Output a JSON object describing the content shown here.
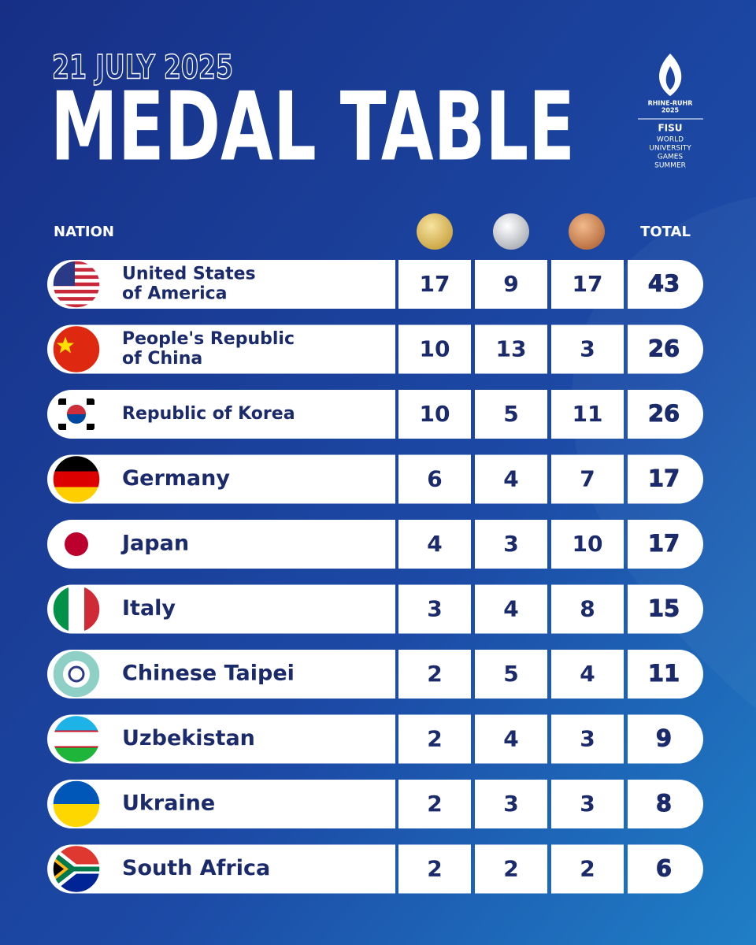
{
  "header": {
    "date": "21 JULY 2025",
    "title": "MEDAL TABLE"
  },
  "logo": {
    "event": [
      "RHINE-RUHR",
      "2025"
    ],
    "organizer": "FISU",
    "games": [
      "WORLD",
      "UNIVERSITY",
      "GAMES",
      "SUMMER"
    ]
  },
  "table": {
    "headers": {
      "nation": "NATION",
      "total": "TOTAL"
    },
    "rows": [
      {
        "nation": [
          "United States",
          "of America"
        ],
        "gold": 17,
        "silver": 9,
        "bronze": 17,
        "total": 43
      },
      {
        "nation": [
          "People's Republic",
          "of China"
        ],
        "gold": 10,
        "silver": 13,
        "bronze": 3,
        "total": 26
      },
      {
        "nation": [
          "Republic of Korea"
        ],
        "gold": 10,
        "silver": 5,
        "bronze": 11,
        "total": 26
      },
      {
        "nation": [
          "Germany"
        ],
        "gold": 6,
        "silver": 4,
        "bronze": 7,
        "total": 17
      },
      {
        "nation": [
          "Japan"
        ],
        "gold": 4,
        "silver": 3,
        "bronze": 10,
        "total": 17
      },
      {
        "nation": [
          "Italy"
        ],
        "gold": 3,
        "silver": 4,
        "bronze": 8,
        "total": 15
      },
      {
        "nation": [
          "Chinese Taipei"
        ],
        "gold": 2,
        "silver": 5,
        "bronze": 4,
        "total": 11
      },
      {
        "nation": [
          "Uzbekistan"
        ],
        "gold": 2,
        "silver": 4,
        "bronze": 3,
        "total": 9
      },
      {
        "nation": [
          "Ukraine"
        ],
        "gold": 2,
        "silver": 3,
        "bronze": 3,
        "total": 8
      },
      {
        "nation": [
          "South Africa"
        ],
        "gold": 2,
        "silver": 2,
        "bronze": 2,
        "total": 6
      }
    ]
  }
}
